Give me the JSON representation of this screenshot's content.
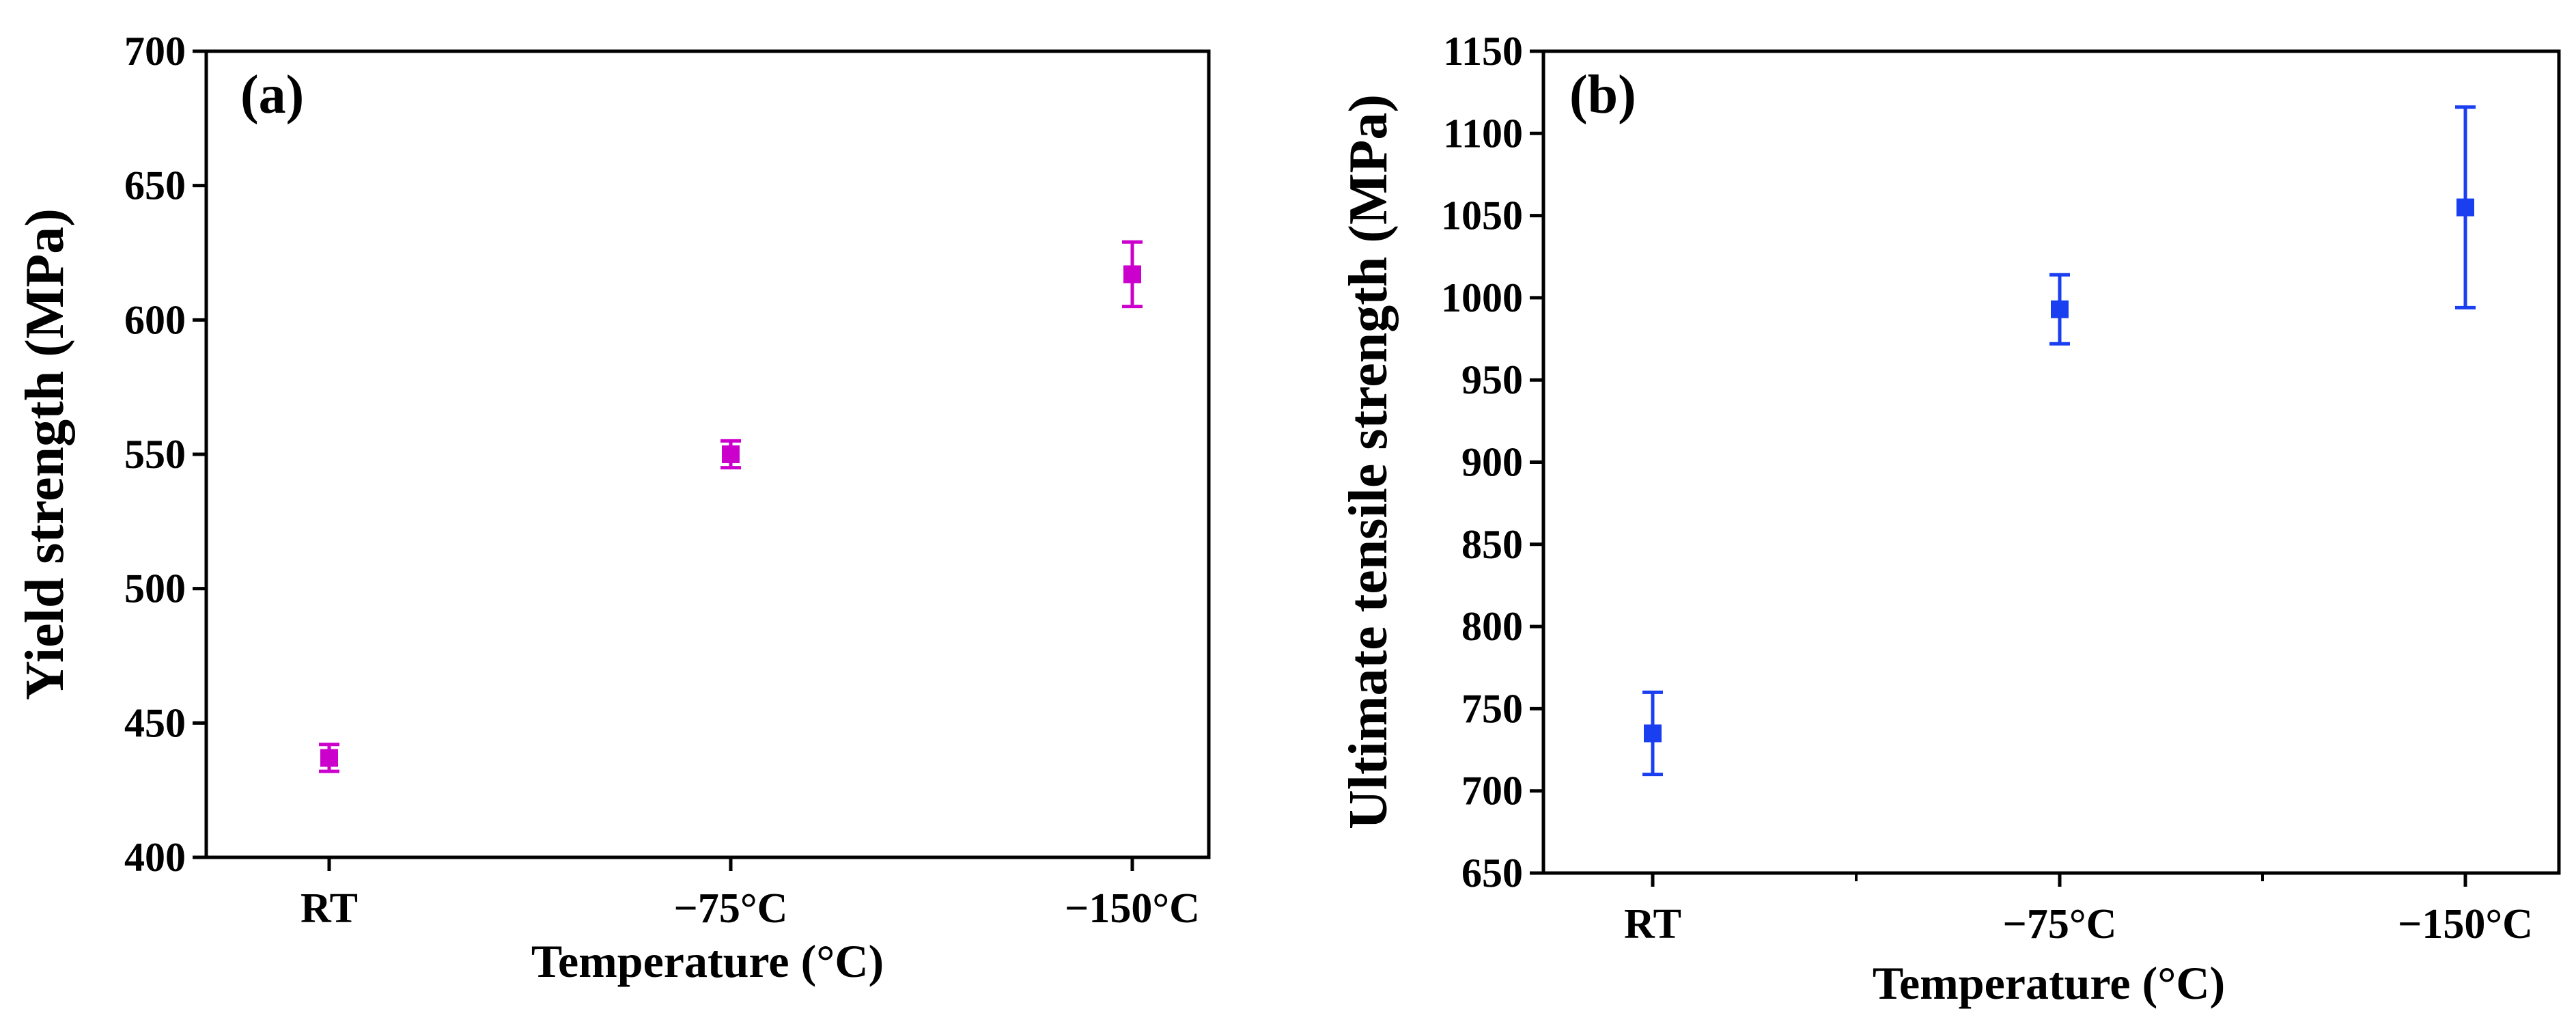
{
  "chart_data": [
    {
      "type": "scatter",
      "panel_label": "(a)",
      "xlabel": "Temperature (°C)",
      "ylabel": "Yield strength (MPa)",
      "categories": [
        "RT",
        "−75°C",
        "−150°C"
      ],
      "ylim": [
        400,
        700
      ],
      "yticks": [
        400,
        450,
        500,
        550,
        600,
        650,
        700
      ],
      "grid": false,
      "color": "#cc00cc",
      "series": [
        {
          "values": [
            437,
            550,
            617
          ],
          "errors": [
            5,
            5,
            12
          ]
        }
      ]
    },
    {
      "type": "scatter",
      "panel_label": "(b)",
      "xlabel": "Temperature (°C)",
      "ylabel": "Ultimate tensile strength (MPa)",
      "categories": [
        "RT",
        "−75°C",
        "−150°C"
      ],
      "ylim": [
        650,
        1150
      ],
      "yticks": [
        650,
        700,
        750,
        800,
        850,
        900,
        950,
        1000,
        1050,
        1100,
        1150
      ],
      "grid": false,
      "color": "#1a3ff0",
      "series": [
        {
          "values": [
            735,
            993,
            1055
          ],
          "errors": [
            25,
            21,
            61
          ]
        }
      ]
    }
  ]
}
